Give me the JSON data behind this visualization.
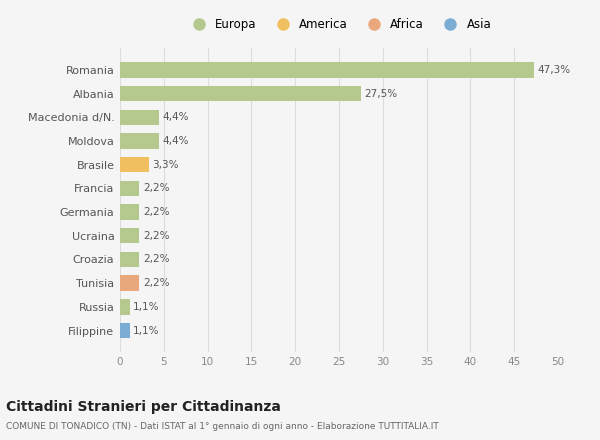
{
  "countries": [
    "Romania",
    "Albania",
    "Macedonia d/N.",
    "Moldova",
    "Brasile",
    "Francia",
    "Germania",
    "Ucraina",
    "Croazia",
    "Tunisia",
    "Russia",
    "Filippine"
  ],
  "values": [
    47.3,
    27.5,
    4.4,
    4.4,
    3.3,
    2.2,
    2.2,
    2.2,
    2.2,
    2.2,
    1.1,
    1.1
  ],
  "labels": [
    "47,3%",
    "27,5%",
    "4,4%",
    "4,4%",
    "3,3%",
    "2,2%",
    "2,2%",
    "2,2%",
    "2,2%",
    "2,2%",
    "1,1%",
    "1,1%"
  ],
  "colors": [
    "#b5c98e",
    "#b5c98e",
    "#b5c98e",
    "#b5c98e",
    "#f0c060",
    "#b5c98e",
    "#b5c98e",
    "#b5c98e",
    "#b5c98e",
    "#e8a87c",
    "#b5c98e",
    "#7bacd4"
  ],
  "categories": [
    "Europa",
    "America",
    "Africa",
    "Asia"
  ],
  "legend_colors": [
    "#b5c98e",
    "#f0c060",
    "#e8a87c",
    "#7bacd4"
  ],
  "xlim": [
    0,
    50
  ],
  "xticks": [
    0,
    5,
    10,
    15,
    20,
    25,
    30,
    35,
    40,
    45,
    50
  ],
  "title": "Cittadini Stranieri per Cittadinanza",
  "subtitle": "COMUNE DI TONADICO (TN) - Dati ISTAT al 1° gennaio di ogni anno - Elaborazione TUTTITALIA.IT",
  "background_color": "#f5f5f5",
  "grid_color": "#dddddd"
}
